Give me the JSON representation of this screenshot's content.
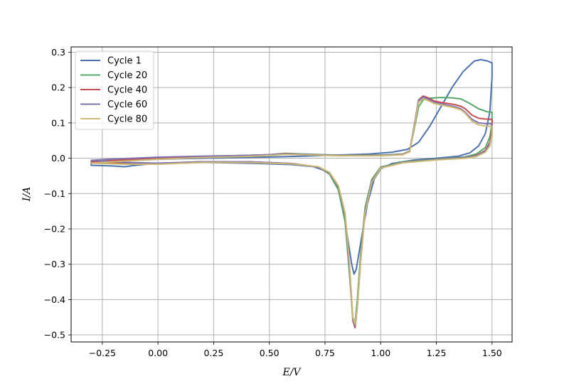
{
  "chart_data": {
    "type": "line",
    "title": "",
    "xlabel": "E/V",
    "ylabel": "I/A",
    "xlim": [
      -0.39,
      1.59
    ],
    "ylim": [
      -0.52,
      0.315
    ],
    "xticks": [
      -0.25,
      0.0,
      0.25,
      0.5,
      0.75,
      1.0,
      1.25,
      1.5
    ],
    "xtick_labels": [
      "−0.25",
      "0.00",
      "0.25",
      "0.50",
      "0.75",
      "1.00",
      "1.25",
      "1.50"
    ],
    "yticks": [
      0.3,
      0.2,
      0.1,
      0.0,
      -0.1,
      -0.2,
      -0.3,
      -0.4,
      -0.5
    ],
    "ytick_labels": [
      "0.3",
      "0.2",
      "0.1",
      "0.0",
      "−0.1",
      "−0.2",
      "−0.3",
      "−0.4",
      "−0.5"
    ],
    "grid": true,
    "legend_position": "upper-left",
    "series": [
      {
        "name": "Cycle 1",
        "color": "#4c72b0",
        "points": [
          [
            0.45,
            0.003
          ],
          [
            0.6,
            0.005
          ],
          [
            0.8,
            0.009
          ],
          [
            0.95,
            0.012
          ],
          [
            1.05,
            0.017
          ],
          [
            1.12,
            0.025
          ],
          [
            1.17,
            0.045
          ],
          [
            1.22,
            0.09
          ],
          [
            1.27,
            0.145
          ],
          [
            1.32,
            0.2
          ],
          [
            1.37,
            0.245
          ],
          [
            1.42,
            0.275
          ],
          [
            1.45,
            0.279
          ],
          [
            1.48,
            0.275
          ],
          [
            1.5,
            0.27
          ],
          [
            1.5,
            0.23
          ],
          [
            1.49,
            0.13
          ],
          [
            1.47,
            0.07
          ],
          [
            1.44,
            0.035
          ],
          [
            1.4,
            0.015
          ],
          [
            1.35,
            0.006
          ],
          [
            1.25,
            0.0
          ],
          [
            1.15,
            -0.005
          ],
          [
            1.05,
            -0.015
          ],
          [
            1.0,
            -0.03
          ],
          [
            0.97,
            -0.06
          ],
          [
            0.94,
            -0.13
          ],
          [
            0.91,
            -0.24
          ],
          [
            0.89,
            -0.315
          ],
          [
            0.88,
            -0.328
          ],
          [
            0.87,
            -0.3
          ],
          [
            0.85,
            -0.22
          ],
          [
            0.83,
            -0.13
          ],
          [
            0.8,
            -0.07
          ],
          [
            0.77,
            -0.04
          ],
          [
            0.7,
            -0.024
          ],
          [
            0.6,
            -0.018
          ],
          [
            0.4,
            -0.014
          ],
          [
            0.2,
            -0.012
          ],
          [
            0.0,
            -0.014
          ],
          [
            -0.1,
            -0.02
          ],
          [
            -0.15,
            -0.024
          ],
          [
            -0.2,
            -0.022
          ],
          [
            -0.3,
            -0.02
          ],
          [
            -0.3,
            -0.013
          ],
          [
            -0.2,
            -0.01
          ],
          [
            0.0,
            -0.003
          ],
          [
            0.2,
            0.0
          ],
          [
            0.4,
            0.002
          ],
          [
            0.45,
            0.003
          ]
        ]
      },
      {
        "name": "Cycle 20",
        "color": "#55a868",
        "points": [
          [
            -0.3,
            -0.012
          ],
          [
            -0.2,
            -0.008
          ],
          [
            0.0,
            0.0
          ],
          [
            0.2,
            0.005
          ],
          [
            0.4,
            0.008
          ],
          [
            0.5,
            0.01
          ],
          [
            0.57,
            0.014
          ],
          [
            0.65,
            0.012
          ],
          [
            0.8,
            0.009
          ],
          [
            1.0,
            0.009
          ],
          [
            1.1,
            0.012
          ],
          [
            1.13,
            0.02
          ],
          [
            1.15,
            0.08
          ],
          [
            1.17,
            0.145
          ],
          [
            1.19,
            0.165
          ],
          [
            1.22,
            0.17
          ],
          [
            1.27,
            0.172
          ],
          [
            1.32,
            0.171
          ],
          [
            1.36,
            0.168
          ],
          [
            1.4,
            0.155
          ],
          [
            1.44,
            0.14
          ],
          [
            1.48,
            0.131
          ],
          [
            1.5,
            0.13
          ],
          [
            1.5,
            0.1
          ],
          [
            1.49,
            0.06
          ],
          [
            1.47,
            0.03
          ],
          [
            1.43,
            0.012
          ],
          [
            1.38,
            0.004
          ],
          [
            1.25,
            -0.003
          ],
          [
            1.1,
            -0.01
          ],
          [
            1.0,
            -0.025
          ],
          [
            0.96,
            -0.06
          ],
          [
            0.93,
            -0.14
          ],
          [
            0.91,
            -0.27
          ],
          [
            0.895,
            -0.4
          ],
          [
            0.885,
            -0.465
          ],
          [
            0.875,
            -0.45
          ],
          [
            0.86,
            -0.33
          ],
          [
            0.84,
            -0.18
          ],
          [
            0.81,
            -0.09
          ],
          [
            0.77,
            -0.045
          ],
          [
            0.72,
            -0.025
          ],
          [
            0.6,
            -0.015
          ],
          [
            0.4,
            -0.01
          ],
          [
            0.2,
            -0.01
          ],
          [
            0.0,
            -0.015
          ],
          [
            -0.15,
            -0.015
          ],
          [
            -0.3,
            -0.012
          ]
        ]
      },
      {
        "name": "Cycle 40",
        "color": "#c44e52",
        "points": [
          [
            -0.3,
            -0.01
          ],
          [
            -0.2,
            -0.006
          ],
          [
            0.0,
            0.001
          ],
          [
            0.2,
            0.005
          ],
          [
            0.4,
            0.008
          ],
          [
            0.5,
            0.01
          ],
          [
            0.57,
            0.013
          ],
          [
            0.65,
            0.011
          ],
          [
            0.8,
            0.008
          ],
          [
            1.0,
            0.008
          ],
          [
            1.1,
            0.011
          ],
          [
            1.13,
            0.02
          ],
          [
            1.15,
            0.09
          ],
          [
            1.17,
            0.165
          ],
          [
            1.19,
            0.176
          ],
          [
            1.21,
            0.172
          ],
          [
            1.24,
            0.162
          ],
          [
            1.27,
            0.158
          ],
          [
            1.3,
            0.155
          ],
          [
            1.33,
            0.152
          ],
          [
            1.36,
            0.147
          ],
          [
            1.38,
            0.14
          ],
          [
            1.41,
            0.122
          ],
          [
            1.44,
            0.113
          ],
          [
            1.47,
            0.111
          ],
          [
            1.5,
            0.11
          ],
          [
            1.5,
            0.08
          ],
          [
            1.49,
            0.045
          ],
          [
            1.47,
            0.022
          ],
          [
            1.43,
            0.008
          ],
          [
            1.38,
            0.002
          ],
          [
            1.25,
            -0.004
          ],
          [
            1.1,
            -0.012
          ],
          [
            1.0,
            -0.027
          ],
          [
            0.96,
            -0.065
          ],
          [
            0.93,
            -0.15
          ],
          [
            0.91,
            -0.29
          ],
          [
            0.895,
            -0.42
          ],
          [
            0.885,
            -0.48
          ],
          [
            0.875,
            -0.46
          ],
          [
            0.86,
            -0.31
          ],
          [
            0.84,
            -0.16
          ],
          [
            0.81,
            -0.08
          ],
          [
            0.77,
            -0.042
          ],
          [
            0.72,
            -0.025
          ],
          [
            0.6,
            -0.015
          ],
          [
            0.4,
            -0.01
          ],
          [
            0.2,
            -0.01
          ],
          [
            0.0,
            -0.015
          ],
          [
            -0.15,
            -0.014
          ],
          [
            -0.3,
            -0.01
          ]
        ]
      },
      {
        "name": "Cycle 60",
        "color": "#8172b2",
        "points": [
          [
            -0.3,
            -0.006
          ],
          [
            -0.2,
            -0.002
          ],
          [
            0.0,
            0.003
          ],
          [
            0.2,
            0.006
          ],
          [
            0.4,
            0.008
          ],
          [
            0.5,
            0.01
          ],
          [
            0.57,
            0.012
          ],
          [
            0.65,
            0.011
          ],
          [
            0.8,
            0.008
          ],
          [
            1.0,
            0.008
          ],
          [
            1.1,
            0.011
          ],
          [
            1.13,
            0.02
          ],
          [
            1.15,
            0.09
          ],
          [
            1.17,
            0.163
          ],
          [
            1.19,
            0.173
          ],
          [
            1.21,
            0.168
          ],
          [
            1.24,
            0.158
          ],
          [
            1.27,
            0.154
          ],
          [
            1.3,
            0.15
          ],
          [
            1.33,
            0.146
          ],
          [
            1.36,
            0.14
          ],
          [
            1.38,
            0.13
          ],
          [
            1.41,
            0.11
          ],
          [
            1.44,
            0.1
          ],
          [
            1.47,
            0.098
          ],
          [
            1.5,
            0.097
          ],
          [
            1.5,
            0.07
          ],
          [
            1.49,
            0.04
          ],
          [
            1.47,
            0.02
          ],
          [
            1.43,
            0.007
          ],
          [
            1.38,
            0.002
          ],
          [
            1.25,
            -0.004
          ],
          [
            1.1,
            -0.012
          ],
          [
            1.0,
            -0.027
          ],
          [
            0.96,
            -0.065
          ],
          [
            0.93,
            -0.15
          ],
          [
            0.91,
            -0.29
          ],
          [
            0.895,
            -0.42
          ],
          [
            0.885,
            -0.475
          ],
          [
            0.875,
            -0.455
          ],
          [
            0.86,
            -0.31
          ],
          [
            0.84,
            -0.16
          ],
          [
            0.81,
            -0.08
          ],
          [
            0.77,
            -0.042
          ],
          [
            0.72,
            -0.025
          ],
          [
            0.6,
            -0.015
          ],
          [
            0.4,
            -0.01
          ],
          [
            0.2,
            -0.01
          ],
          [
            0.0,
            -0.014
          ],
          [
            -0.15,
            -0.012
          ],
          [
            -0.3,
            -0.006
          ]
        ]
      },
      {
        "name": "Cycle 80",
        "color": "#ccb974",
        "points": [
          [
            -0.3,
            -0.014
          ],
          [
            -0.2,
            -0.01
          ],
          [
            0.0,
            -0.003
          ],
          [
            0.2,
            0.002
          ],
          [
            0.4,
            0.005
          ],
          [
            0.5,
            0.008
          ],
          [
            0.57,
            0.011
          ],
          [
            0.65,
            0.01
          ],
          [
            0.8,
            0.007
          ],
          [
            1.0,
            0.007
          ],
          [
            1.1,
            0.01
          ],
          [
            1.13,
            0.018
          ],
          [
            1.15,
            0.085
          ],
          [
            1.17,
            0.158
          ],
          [
            1.19,
            0.168
          ],
          [
            1.21,
            0.164
          ],
          [
            1.24,
            0.155
          ],
          [
            1.27,
            0.151
          ],
          [
            1.3,
            0.147
          ],
          [
            1.33,
            0.143
          ],
          [
            1.36,
            0.137
          ],
          [
            1.38,
            0.127
          ],
          [
            1.41,
            0.105
          ],
          [
            1.44,
            0.094
          ],
          [
            1.47,
            0.091
          ],
          [
            1.5,
            0.09
          ],
          [
            1.5,
            0.065
          ],
          [
            1.49,
            0.035
          ],
          [
            1.47,
            0.017
          ],
          [
            1.43,
            0.005
          ],
          [
            1.38,
            0.0
          ],
          [
            1.25,
            -0.005
          ],
          [
            1.1,
            -0.013
          ],
          [
            1.0,
            -0.028
          ],
          [
            0.96,
            -0.068
          ],
          [
            0.93,
            -0.155
          ],
          [
            0.91,
            -0.29
          ],
          [
            0.895,
            -0.42
          ],
          [
            0.885,
            -0.47
          ],
          [
            0.875,
            -0.45
          ],
          [
            0.86,
            -0.3
          ],
          [
            0.84,
            -0.155
          ],
          [
            0.81,
            -0.078
          ],
          [
            0.77,
            -0.04
          ],
          [
            0.72,
            -0.024
          ],
          [
            0.6,
            -0.016
          ],
          [
            0.4,
            -0.012
          ],
          [
            0.2,
            -0.012
          ],
          [
            0.0,
            -0.017
          ],
          [
            -0.15,
            -0.017
          ],
          [
            -0.3,
            -0.014
          ]
        ]
      }
    ]
  }
}
